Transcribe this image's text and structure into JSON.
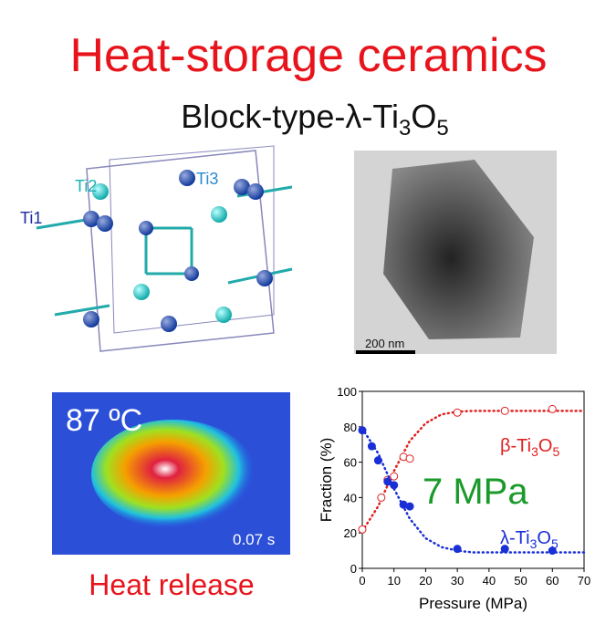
{
  "header": {
    "title": "Heat-storage ceramics",
    "subtitle_parts": [
      "Block-type-λ-Ti",
      "3",
      "O",
      "5"
    ]
  },
  "structure": {
    "labels": [
      "Ti1",
      "Ti2",
      "Ti3"
    ]
  },
  "micrograph": {
    "scale_bar": "200 nm"
  },
  "thermal": {
    "temperature": "87 ºC",
    "time": "0.07 s",
    "caption": "Heat release"
  },
  "chart_data": {
    "type": "scatter",
    "xlabel": "Pressure (MPa)",
    "ylabel": "Fraction (%)",
    "annotation": "7 MPa",
    "xlim": [
      0,
      70
    ],
    "xticks": [
      0,
      10,
      20,
      30,
      40,
      50,
      60,
      70
    ],
    "ylim": [
      0,
      100
    ],
    "yticks": [
      0,
      20,
      40,
      60,
      80,
      100
    ],
    "fit_x": [
      0,
      5,
      10,
      15,
      20,
      25,
      30,
      35,
      40,
      45,
      50,
      55,
      60,
      65,
      70
    ],
    "series": [
      {
        "label_parts": [
          "β-Ti",
          "3",
          "O",
          "5"
        ],
        "color": "#e02020",
        "marker": "open",
        "x": [
          0,
          6,
          8,
          10,
          13,
          15,
          30,
          45,
          60
        ],
        "values": [
          22,
          40,
          50,
          52,
          63,
          62,
          88,
          89,
          90
        ],
        "fit_values": [
          21,
          35,
          55,
          72,
          82,
          87,
          88.5,
          89,
          89,
          89,
          89,
          89,
          89,
          89,
          89
        ]
      },
      {
        "label_parts": [
          "λ-Ti",
          "3",
          "O",
          "5"
        ],
        "color": "#1a2fd6",
        "marker": "filled",
        "x": [
          0,
          3,
          5,
          8,
          10,
          13,
          15,
          30,
          45,
          60
        ],
        "values": [
          78,
          69,
          61,
          49,
          47,
          36,
          35,
          11,
          11,
          10
        ],
        "fit_values": [
          79,
          65,
          45,
          28,
          17,
          12,
          10,
          9,
          9,
          9,
          9,
          9,
          9,
          9,
          9
        ]
      }
    ]
  }
}
